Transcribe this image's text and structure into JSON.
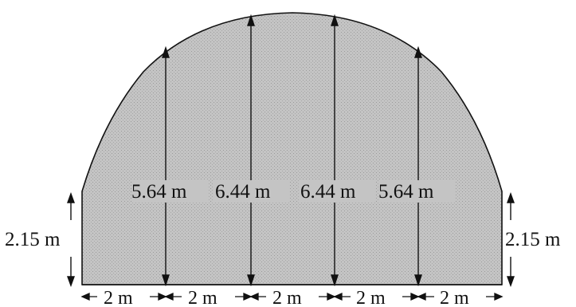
{
  "diagram": {
    "fill_color": "#bdbdbd",
    "line_color": "#111111",
    "heights": [
      {
        "label": "5.64 m",
        "value": 5.64
      },
      {
        "label": "6.44 m",
        "value": 6.44
      },
      {
        "label": "6.44 m",
        "value": 6.44
      },
      {
        "label": "5.64 m",
        "value": 5.64
      }
    ],
    "side_left": {
      "label": "2.15 m",
      "value": 2.15
    },
    "side_right": {
      "label": "2.15 m",
      "value": 2.15
    },
    "widths": [
      {
        "label": "2 m",
        "value": 2
      },
      {
        "label": "2 m",
        "value": 2
      },
      {
        "label": "2 m",
        "value": 2
      },
      {
        "label": "2 m",
        "value": 2
      },
      {
        "label": "2 m",
        "value": 2
      }
    ]
  }
}
